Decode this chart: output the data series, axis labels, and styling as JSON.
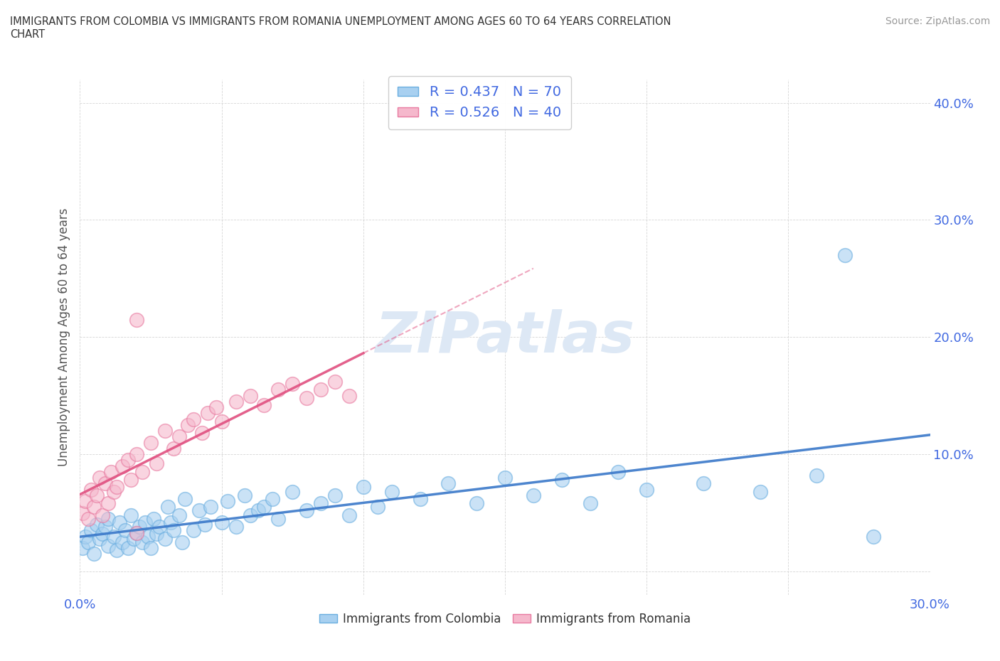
{
  "title": "IMMIGRANTS FROM COLOMBIA VS IMMIGRANTS FROM ROMANIA UNEMPLOYMENT AMONG AGES 60 TO 64 YEARS CORRELATION\nCHART",
  "source": "Source: ZipAtlas.com",
  "ylabel": "Unemployment Among Ages 60 to 64 years",
  "xlim": [
    0.0,
    0.3
  ],
  "ylim": [
    -0.02,
    0.42
  ],
  "xticks": [
    0.0,
    0.05,
    0.1,
    0.15,
    0.2,
    0.25,
    0.3
  ],
  "yticks": [
    0.0,
    0.1,
    0.2,
    0.3,
    0.4
  ],
  "colombia_color": "#a8d0f0",
  "colombia_edge_color": "#6aaee0",
  "romania_color": "#f5b8cc",
  "romania_edge_color": "#e87aa0",
  "colombia_line_color": "#3a78c9",
  "romania_line_color": "#e05080",
  "colombia_R": 0.437,
  "colombia_N": 70,
  "romania_R": 0.526,
  "romania_N": 40,
  "legend_color": "#4169E1",
  "ytick_color": "#4169E1",
  "xtick_color": "#4169E1",
  "watermark": "ZIPatlas",
  "watermark_color": "#dde8f5",
  "colombia_x": [
    0.001,
    0.002,
    0.003,
    0.004,
    0.005,
    0.006,
    0.007,
    0.008,
    0.009,
    0.01,
    0.01,
    0.012,
    0.013,
    0.014,
    0.015,
    0.016,
    0.017,
    0.018,
    0.019,
    0.02,
    0.021,
    0.022,
    0.023,
    0.024,
    0.025,
    0.026,
    0.027,
    0.028,
    0.03,
    0.031,
    0.032,
    0.033,
    0.035,
    0.036,
    0.037,
    0.04,
    0.042,
    0.044,
    0.046,
    0.05,
    0.052,
    0.055,
    0.058,
    0.06,
    0.063,
    0.065,
    0.068,
    0.07,
    0.075,
    0.08,
    0.085,
    0.09,
    0.095,
    0.1,
    0.105,
    0.11,
    0.12,
    0.13,
    0.14,
    0.15,
    0.16,
    0.17,
    0.18,
    0.19,
    0.2,
    0.22,
    0.24,
    0.26,
    0.27,
    0.28
  ],
  "colombia_y": [
    0.02,
    0.03,
    0.025,
    0.035,
    0.015,
    0.04,
    0.028,
    0.032,
    0.038,
    0.022,
    0.045,
    0.03,
    0.018,
    0.042,
    0.025,
    0.035,
    0.02,
    0.048,
    0.028,
    0.033,
    0.038,
    0.025,
    0.042,
    0.03,
    0.02,
    0.045,
    0.032,
    0.038,
    0.028,
    0.055,
    0.042,
    0.035,
    0.048,
    0.025,
    0.062,
    0.035,
    0.052,
    0.04,
    0.055,
    0.042,
    0.06,
    0.038,
    0.065,
    0.048,
    0.052,
    0.055,
    0.062,
    0.045,
    0.068,
    0.052,
    0.058,
    0.065,
    0.048,
    0.072,
    0.055,
    0.068,
    0.062,
    0.075,
    0.058,
    0.08,
    0.065,
    0.078,
    0.058,
    0.085,
    0.07,
    0.075,
    0.068,
    0.082,
    0.27,
    0.03
  ],
  "romania_x": [
    0.001,
    0.002,
    0.003,
    0.004,
    0.005,
    0.006,
    0.007,
    0.008,
    0.009,
    0.01,
    0.011,
    0.012,
    0.013,
    0.015,
    0.017,
    0.018,
    0.02,
    0.022,
    0.025,
    0.027,
    0.03,
    0.033,
    0.035,
    0.038,
    0.04,
    0.043,
    0.045,
    0.048,
    0.05,
    0.055,
    0.06,
    0.065,
    0.07,
    0.075,
    0.08,
    0.085,
    0.09,
    0.095,
    0.02,
    0.02
  ],
  "romania_y": [
    0.05,
    0.06,
    0.045,
    0.07,
    0.055,
    0.065,
    0.08,
    0.048,
    0.075,
    0.058,
    0.085,
    0.068,
    0.072,
    0.09,
    0.095,
    0.078,
    0.1,
    0.085,
    0.11,
    0.092,
    0.12,
    0.105,
    0.115,
    0.125,
    0.13,
    0.118,
    0.135,
    0.14,
    0.128,
    0.145,
    0.15,
    0.142,
    0.155,
    0.16,
    0.148,
    0.155,
    0.162,
    0.15,
    0.215,
    0.033
  ]
}
